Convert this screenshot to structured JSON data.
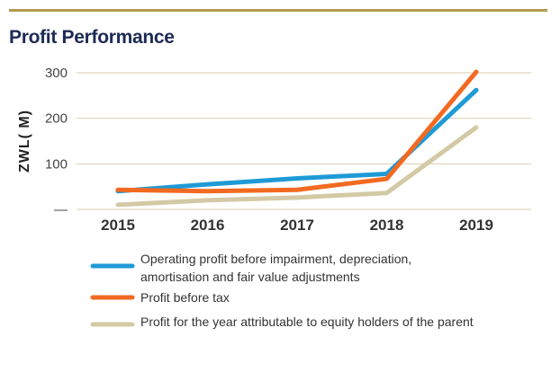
{
  "title": "Profit Performance",
  "colors": {
    "rule": "#b59a4e",
    "title": "#1d2a54",
    "grid": "#d9ceaf"
  },
  "chart_data": {
    "type": "line",
    "title": "Profit Performance",
    "xlabel": "",
    "ylabel": "ZWL( M)",
    "x": [
      "2015",
      "2016",
      "2017",
      "2018",
      "2019"
    ],
    "ylim": [
      0,
      300
    ],
    "yticks": [
      0,
      100,
      200,
      300
    ],
    "ytick_labels": [
      "—",
      "100",
      "200",
      "300"
    ],
    "grid": true,
    "legend_position": "bottom",
    "series": [
      {
        "name": "Operating profit before impairment, depreciation, amortisation and fair value adjustments",
        "legend_lines": [
          "Operating profit before impairment, depreciation,",
          "amortisation and fair value adjustments"
        ],
        "color": "#1f9ad6",
        "values": [
          40,
          55,
          68,
          78,
          262
        ]
      },
      {
        "name": "Profit before tax",
        "legend_lines": [
          "Profit before tax"
        ],
        "color": "#f26a21",
        "values": [
          43,
          40,
          43,
          67,
          302
        ]
      },
      {
        "name": "Profit for the year attributable to equity holders of the parent",
        "legend_lines": [
          "Profit for the year attributable to equity holders of the parent"
        ],
        "color": "#d4c9a6",
        "values": [
          10,
          20,
          26,
          36,
          180
        ]
      }
    ]
  }
}
